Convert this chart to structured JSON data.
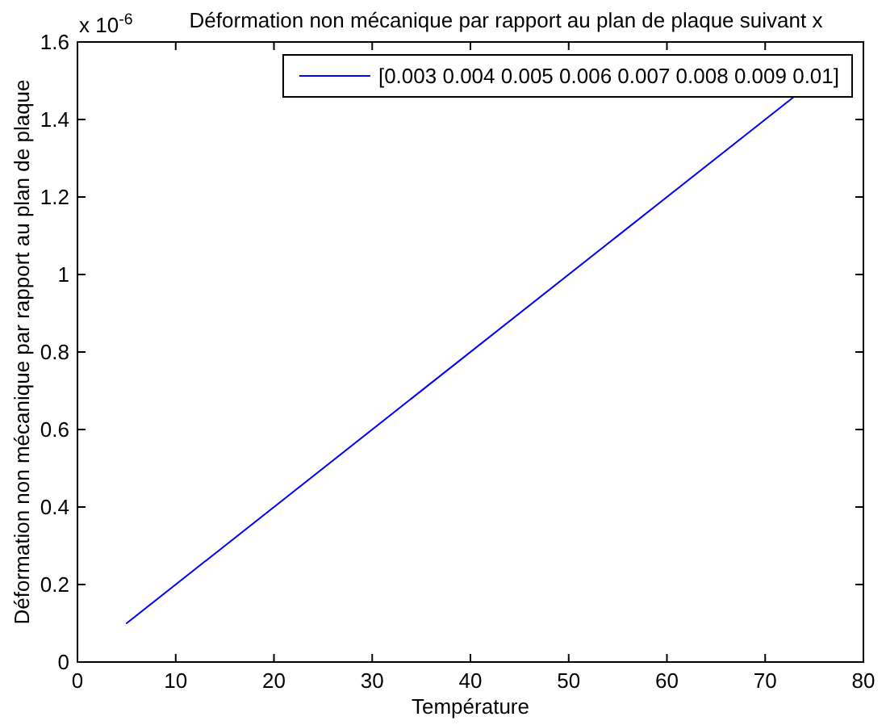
{
  "chart_data": {
    "type": "line",
    "title": "Déformation non mécanique par rapport au plan de plaque suivant x",
    "xlabel": "Température",
    "ylabel": "Déformation non mécanique par rapport au plan de plaque",
    "annotations": [
      "x 10$^{-6}$"
    ],
    "x": [
      5,
      73
    ],
    "series": [
      {
        "name": "[0.003 0.004 0.005 0.006 0.007 0.008 0.009 0.01]",
        "color": "#0000ff",
        "values": [
          0.1,
          1.46
        ]
      }
    ],
    "xlim": [
      0,
      80
    ],
    "xticks": [
      0,
      10,
      20,
      30,
      40,
      50,
      60,
      70,
      80
    ],
    "ylim": [
      0,
      1.6
    ],
    "yticks": [
      0,
      0.2,
      0.4,
      0.6,
      0.8,
      1,
      1.2,
      1.4,
      1.6
    ],
    "legend": "top right",
    "line_style": "solid"
  }
}
